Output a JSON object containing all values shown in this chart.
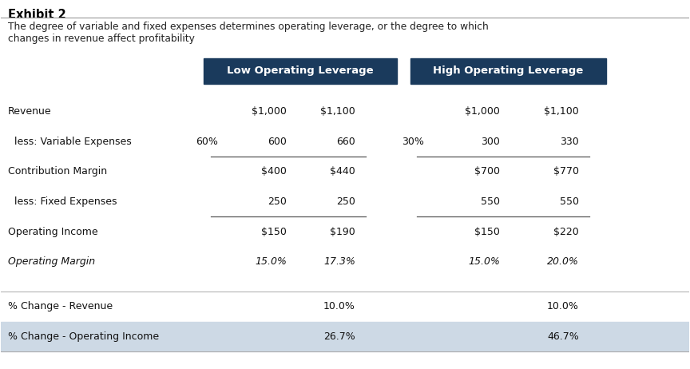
{
  "title": "Exhibit 2",
  "subtitle": "The degree of variable and fixed expenses determines operating leverage, or the degree to which\nchanges in revenue affect profitability",
  "header_bg_color": "#1a3a5c",
  "header_text_color": "#ffffff",
  "col1_header": "Low Operating Leverage",
  "col2_header": "High Operating Leverage",
  "background_color": "#ffffff",
  "shaded_row_color": "#cdd9e5",
  "rows": [
    {
      "label": "Revenue",
      "indent": false,
      "pct_low": "",
      "val1_low": "$1,000",
      "val2_low": "$1,100",
      "pct_high": "",
      "val1_high": "$1,000",
      "val2_high": "$1,100",
      "bold": false,
      "italic": false,
      "top_border": false,
      "bottom_border": false,
      "shaded": false
    },
    {
      "label": "  less: Variable Expenses",
      "indent": true,
      "pct_low": "60%",
      "val1_low": "600",
      "val2_low": "660",
      "pct_high": "30%",
      "val1_high": "300",
      "val2_high": "330",
      "bold": false,
      "italic": false,
      "top_border": false,
      "bottom_border": true,
      "shaded": false
    },
    {
      "label": "Contribution Margin",
      "indent": false,
      "pct_low": "",
      "val1_low": "$400",
      "val2_low": "$440",
      "pct_high": "",
      "val1_high": "$700",
      "val2_high": "$770",
      "bold": false,
      "italic": false,
      "top_border": false,
      "bottom_border": false,
      "shaded": false
    },
    {
      "label": "  less: Fixed Expenses",
      "indent": true,
      "pct_low": "",
      "val1_low": "250",
      "val2_low": "250",
      "pct_high": "",
      "val1_high": "550",
      "val2_high": "550",
      "bold": false,
      "italic": false,
      "top_border": false,
      "bottom_border": true,
      "shaded": false
    },
    {
      "label": "Operating Income",
      "indent": false,
      "pct_low": "",
      "val1_low": "$150",
      "val2_low": "$190",
      "pct_high": "",
      "val1_high": "$150",
      "val2_high": "$220",
      "bold": false,
      "italic": false,
      "top_border": false,
      "bottom_border": false,
      "shaded": false
    },
    {
      "label": "Operating Margin",
      "indent": false,
      "pct_low": "",
      "val1_low": "15.0%",
      "val2_low": "17.3%",
      "pct_high": "",
      "val1_high": "15.0%",
      "val2_high": "20.0%",
      "bold": false,
      "italic": true,
      "top_border": false,
      "bottom_border": false,
      "shaded": false
    },
    {
      "label": "% Change - Revenue",
      "indent": false,
      "pct_low": "",
      "val1_low": "",
      "val2_low": "10.0%",
      "pct_high": "",
      "val1_high": "",
      "val2_high": "10.0%",
      "bold": false,
      "italic": false,
      "top_border": false,
      "bottom_border": false,
      "shaded": false
    },
    {
      "label": "% Change - Operating Income",
      "indent": false,
      "pct_low": "",
      "val1_low": "",
      "val2_low": "26.7%",
      "pct_high": "",
      "val1_high": "",
      "val2_high": "46.7%",
      "bold": false,
      "italic": false,
      "top_border": false,
      "bottom_border": false,
      "shaded": true
    }
  ],
  "figsize": [
    8.64,
    4.62
  ],
  "dpi": 100
}
